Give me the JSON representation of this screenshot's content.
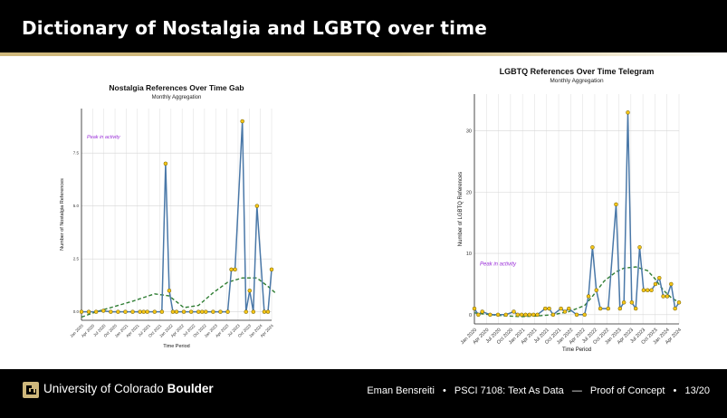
{
  "slide": {
    "title": "Dictionary of Nostalgia and LGBTQ over time",
    "footer": {
      "university": "University of Colorado",
      "university_bold": "Boulder",
      "author": "Eman Bensreiti",
      "course": "PSCI 7108: Text As Data",
      "dash": "—",
      "section": "Proof of Concept",
      "page": "13/20",
      "bullet": "•"
    }
  },
  "colors": {
    "series_line": "#4a78a8",
    "marker_fill": "#f5c518",
    "trend": "#2e7d32",
    "annotation": "#9b30d9",
    "gold": "#cfb87c"
  },
  "chart_data": [
    {
      "type": "line",
      "title": "Nostalgia References Over Time Gab",
      "subtitle": "Monthly Aggregation",
      "xlabel": "Time Period",
      "ylabel": "Number of Nostalgia References",
      "annotation": "Peak in activity",
      "x_ticks": [
        "Jan 2020",
        "Apr 2020",
        "Jul 2020",
        "Oct 2020",
        "Jan 2021",
        "Apr 2021",
        "Jul 2021",
        "Oct 2021",
        "Jan 2022",
        "Apr 2022",
        "Jul 2022",
        "Oct 2022",
        "Jan 2023",
        "Apr 2023",
        "Jul 2023",
        "Oct 2023",
        "Jan 2024",
        "Apr 2024"
      ],
      "y_ticks": [
        "0.0",
        "2.5",
        "5.0",
        "7.5"
      ],
      "y_tick_values": [
        0,
        2.5,
        5,
        7.5
      ],
      "xlim": [
        0,
        52
      ],
      "ylim": [
        -0.4,
        9.6
      ],
      "grid": true,
      "x": [
        0,
        2,
        4,
        6,
        8,
        10,
        12,
        14,
        16,
        17,
        18,
        20,
        22,
        23,
        24,
        25,
        26,
        28,
        30,
        32,
        33,
        34,
        36,
        38,
        40,
        41,
        42,
        44,
        45,
        46,
        47,
        48,
        50,
        51,
        52
      ],
      "values": [
        0,
        0,
        0,
        0.05,
        0,
        0,
        0,
        0,
        0,
        0,
        0,
        0,
        0,
        7,
        1,
        0,
        0,
        0,
        0,
        0,
        0,
        0,
        0,
        0,
        0,
        2,
        2,
        9,
        0,
        1,
        0,
        5,
        0,
        0,
        2
      ],
      "trend": [
        [
          0,
          -0.25
        ],
        [
          4,
          0
        ],
        [
          8,
          0.2
        ],
        [
          14,
          0.5
        ],
        [
          20,
          0.85
        ],
        [
          24,
          0.75
        ],
        [
          28,
          0.2
        ],
        [
          32,
          0.3
        ],
        [
          36,
          0.9
        ],
        [
          40,
          1.4
        ],
        [
          44,
          1.6
        ],
        [
          48,
          1.6
        ],
        [
          51,
          1.2
        ],
        [
          53,
          0.9
        ]
      ]
    },
    {
      "type": "line",
      "title": "LGBTQ References Over Time Telegram",
      "subtitle": "Monthly Aggregation",
      "xlabel": "Time Period",
      "ylabel": "Number of LGBTQ References",
      "annotation": "Peak in activity",
      "x_ticks": [
        "Jan 2020",
        "Apr 2020",
        "Jul 2020",
        "Oct 2020",
        "Jan 2021",
        "Apr 2021",
        "Jul 2021",
        "Oct 2021",
        "Jan 2022",
        "Apr 2022",
        "Jul 2022",
        "Oct 2022",
        "Jan 2023",
        "Apr 2023",
        "Jul 2023",
        "Oct 2023",
        "Jan 2024",
        "Apr 2024"
      ],
      "y_ticks": [
        "0",
        "10",
        "20",
        "30"
      ],
      "y_tick_values": [
        0,
        10,
        20,
        30
      ],
      "xlim": [
        0,
        52
      ],
      "ylim": [
        -1.5,
        36
      ],
      "grid": true,
      "x": [
        0,
        1,
        2,
        4,
        6,
        8,
        10,
        11,
        12,
        13,
        14,
        15,
        16,
        18,
        19,
        20,
        22,
        23,
        24,
        26,
        28,
        29,
        30,
        31,
        32,
        34,
        36,
        37,
        38,
        39,
        40,
        41,
        42,
        43,
        44,
        45,
        46,
        47,
        48,
        49,
        50,
        51,
        52
      ],
      "values": [
        1,
        0,
        0.5,
        0,
        0,
        0,
        0.5,
        0,
        0,
        0,
        0,
        0,
        0,
        1,
        1,
        0,
        1,
        0.5,
        1,
        0,
        0,
        3,
        11,
        4,
        1,
        1,
        18,
        1,
        2,
        33,
        2,
        1,
        11,
        4,
        4,
        4,
        5,
        6,
        3,
        3,
        5,
        1,
        2
      ],
      "trend": [
        [
          0,
          0.3
        ],
        [
          4,
          0
        ],
        [
          8,
          -0.2
        ],
        [
          12,
          -0.3
        ],
        [
          16,
          -0.2
        ],
        [
          20,
          0
        ],
        [
          24,
          0.5
        ],
        [
          28,
          1.5
        ],
        [
          30,
          3
        ],
        [
          33,
          5.5
        ],
        [
          36,
          7
        ],
        [
          38,
          7.6
        ],
        [
          41,
          7.8
        ],
        [
          44,
          7.2
        ],
        [
          46,
          5.8
        ],
        [
          48,
          4
        ],
        [
          50,
          2.8
        ],
        [
          52,
          2
        ]
      ]
    }
  ]
}
